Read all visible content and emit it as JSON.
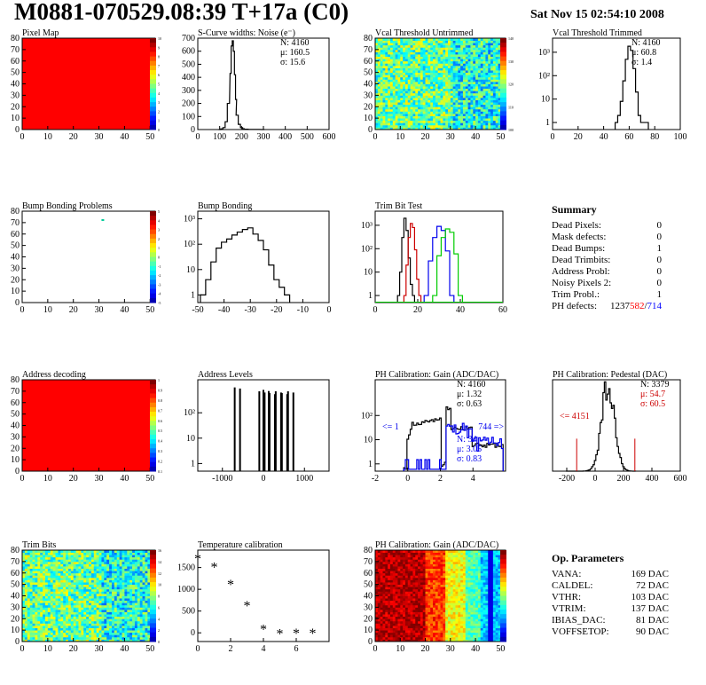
{
  "title": "M0881-070529.08:39 T+17a (C0)",
  "date": "Sat Nov 15 02:54:10 2008",
  "colors": {
    "red": "#ff0000",
    "blue": "#0000ff",
    "green": "#00cc00",
    "black": "#000000",
    "darkred": "#cc0000"
  },
  "chart_data": [
    {
      "id": "pixel-map",
      "type": "heatmap",
      "title": "Pixel Map",
      "xlim": [
        0,
        52
      ],
      "ylim": [
        0,
        80
      ],
      "x_ticks": [
        0,
        10,
        20,
        30,
        40,
        50
      ],
      "y_ticks": [
        0,
        10,
        20,
        30,
        40,
        50,
        60,
        70,
        80
      ],
      "fill": "uniform-max",
      "palette_ticks": [
        "10",
        "9",
        "8",
        "7",
        "6",
        "5",
        "4",
        "3",
        "2",
        "1",
        "0"
      ]
    },
    {
      "id": "scurve",
      "type": "histogram",
      "title": "S-Curve widths: Noise (e⁻)",
      "xlim": [
        0,
        600
      ],
      "ylim": [
        0,
        700
      ],
      "log": false,
      "x_ticks": [
        0,
        100,
        200,
        300,
        400,
        500,
        600
      ],
      "y_ticks": [
        0,
        100,
        200,
        300,
        400,
        500,
        600,
        700
      ],
      "x": [
        100,
        110,
        120,
        130,
        140,
        150,
        155,
        160,
        165,
        170,
        175,
        180,
        190,
        200,
        210,
        220,
        240,
        260,
        300
      ],
      "values": [
        0,
        5,
        15,
        60,
        200,
        430,
        640,
        680,
        600,
        420,
        230,
        110,
        40,
        15,
        6,
        3,
        1,
        1,
        0
      ],
      "stats": {
        "N": "N: 4160",
        "mu": "μ: 160.5",
        "sigma": "σ: 15.6"
      }
    },
    {
      "id": "vcal-untrimmed",
      "type": "heatmap",
      "title": "Vcal Threshold Untrimmed",
      "xlim": [
        0,
        52
      ],
      "ylim": [
        0,
        80
      ],
      "x_ticks": [
        0,
        10,
        20,
        30,
        40,
        50
      ],
      "y_ticks": [
        0,
        10,
        20,
        30,
        40,
        50,
        60,
        70,
        80
      ],
      "fill": "noisy-mid",
      "palette_ticks": [
        "140",
        "130",
        "120",
        "110",
        "100"
      ]
    },
    {
      "id": "vcal-trimmed",
      "type": "histogram",
      "title": "Vcal Threshold Trimmed",
      "xlim": [
        0,
        100
      ],
      "ylim": [
        0.5,
        4000
      ],
      "log": true,
      "x_ticks": [
        0,
        20,
        40,
        60,
        80,
        100
      ],
      "y_ticks": [
        "1",
        "10",
        "10²",
        "10³"
      ],
      "x": [
        50,
        52,
        54,
        56,
        58,
        60,
        62,
        64,
        66,
        68,
        70,
        72,
        74
      ],
      "values": [
        1,
        2,
        8,
        60,
        500,
        1800,
        1200,
        200,
        20,
        2,
        1,
        1,
        1
      ],
      "stats": {
        "N": "N: 4160",
        "mu": "μ: 60.8",
        "sigma": "σ:  1.4"
      }
    },
    {
      "id": "bump-problems",
      "type": "heatmap",
      "title": "Bump Bonding Problems",
      "xlim": [
        0,
        52
      ],
      "ylim": [
        0,
        80
      ],
      "x_ticks": [
        0,
        10,
        20,
        30,
        40,
        50
      ],
      "y_ticks": [
        0,
        10,
        20,
        30,
        40,
        50,
        60,
        70,
        80
      ],
      "fill": "single-dot",
      "palette_ticks": [
        "5",
        "4",
        "3",
        "2",
        "1",
        "0",
        "-1",
        "-2",
        "-3",
        "-4",
        "-5"
      ]
    },
    {
      "id": "bump-bonding",
      "type": "histogram",
      "title": "Bump Bonding",
      "xlim": [
        -50,
        0
      ],
      "ylim": [
        0.5,
        2000
      ],
      "log": true,
      "x_ticks": [
        -50,
        -40,
        -30,
        -20,
        -10,
        0
      ],
      "y_ticks": [
        "1",
        "10",
        "10²",
        "10³"
      ],
      "x": [
        -48,
        -46,
        -44,
        -42,
        -40,
        -38,
        -36,
        -34,
        -32,
        -30,
        -28,
        -26,
        -24,
        -22,
        -20,
        -18,
        -16
      ],
      "values": [
        1,
        4,
        20,
        70,
        120,
        160,
        230,
        300,
        380,
        440,
        250,
        140,
        60,
        15,
        4,
        2,
        1
      ]
    },
    {
      "id": "trim-bits-test",
      "type": "histogram",
      "title": "Trim Bit Test",
      "xlim": [
        0,
        60
      ],
      "ylim": [
        0.5,
        4000
      ],
      "log": true,
      "x_ticks": [
        0,
        20,
        40,
        60
      ],
      "y_ticks": [
        "1",
        "10",
        "10²",
        "10³"
      ],
      "series": [
        {
          "color": "black",
          "x": [
            11,
            12,
            13,
            14,
            15,
            16,
            17,
            18
          ],
          "values": [
            1,
            10,
            300,
            2000,
            600,
            40,
            3,
            1
          ]
        },
        {
          "color": "red",
          "x": [
            14,
            15,
            16,
            17,
            18,
            19,
            20,
            21
          ],
          "values": [
            1,
            20,
            300,
            1200,
            800,
            90,
            5,
            1
          ]
        },
        {
          "color": "blue",
          "x": [
            24,
            26,
            28,
            30,
            32,
            34,
            36
          ],
          "values": [
            1,
            30,
            300,
            900,
            600,
            80,
            1
          ]
        },
        {
          "color": "green",
          "x": [
            28,
            30,
            32,
            34,
            36,
            38,
            40
          ],
          "values": [
            1,
            50,
            300,
            700,
            500,
            60,
            1
          ]
        }
      ]
    },
    {
      "id": "address-decoding",
      "type": "heatmap",
      "title": "Address decoding",
      "xlim": [
        0,
        52
      ],
      "ylim": [
        0,
        80
      ],
      "x_ticks": [
        0,
        10,
        20,
        30,
        40,
        50
      ],
      "y_ticks": [
        0,
        10,
        20,
        30,
        40,
        50,
        60,
        70,
        80
      ],
      "fill": "uniform-max",
      "palette_ticks": [
        "1",
        "0.9",
        "0.8",
        "0.7",
        "0.6",
        "0.5",
        "0.4",
        "0.3",
        "0.2",
        "0.1"
      ]
    },
    {
      "id": "address-levels",
      "type": "histogram",
      "title": "Address Levels",
      "xlim": [
        -1600,
        1600
      ],
      "ylim": [
        0.5,
        2000
      ],
      "log": true,
      "x_ticks": [
        -1000,
        0,
        1000
      ],
      "y_ticks": [
        "1",
        "10",
        "10²"
      ],
      "x": [
        -700,
        -100,
        0,
        150,
        300,
        450,
        600
      ],
      "values": [
        1000,
        700,
        800,
        600,
        700,
        600,
        700
      ]
    },
    {
      "id": "ph-gain",
      "type": "histogram",
      "title": "PH Calibration: Gain (ADC/DAC)",
      "xlim": [
        -2,
        6
      ],
      "ylim": [
        0.5,
        3000
      ],
      "log": true,
      "x_ticks": [
        -2,
        0,
        2,
        4
      ],
      "y_ticks": [
        "1",
        "10",
        "10²"
      ],
      "stats": {
        "N": "N: 4160",
        "mu": "μ: 1.32",
        "sigma": "σ: 0.63"
      },
      "stats2": {
        "N": "N: 34",
        "mu": "μ: 3.05",
        "sigma": "σ: 0.83"
      },
      "under": "<= 1",
      "over": "744 =>"
    },
    {
      "id": "ph-pedestal",
      "type": "histogram",
      "title": "PH Calibration: Pedestal (DAC)",
      "xlim": [
        -300,
        600
      ],
      "ylim": [
        0,
        45
      ],
      "log": false,
      "x_ticks": [
        -200,
        0,
        200,
        400,
        600
      ],
      "stats": {
        "N": "N: 3379",
        "mu": "μ: 54.7",
        "sigma": "σ: 60.5"
      },
      "under": "<= 4151"
    },
    {
      "id": "trim-bits",
      "type": "heatmap",
      "title": "Trim Bits",
      "xlim": [
        0,
        52
      ],
      "ylim": [
        0,
        80
      ],
      "x_ticks": [
        0,
        10,
        20,
        30,
        40,
        50
      ],
      "y_ticks": [
        0,
        10,
        20,
        30,
        40,
        50,
        60,
        70,
        80
      ],
      "fill": "noisy-mid",
      "palette_ticks": [
        "16",
        "14",
        "12",
        "10",
        "8",
        "6",
        "4",
        "2",
        "0"
      ]
    },
    {
      "id": "temperature",
      "type": "scatter",
      "title": "Temperature calibration",
      "xlim": [
        0,
        8
      ],
      "ylim": [
        -200,
        1900
      ],
      "x_ticks": [
        0,
        2,
        4,
        6
      ],
      "y_ticks": [
        0,
        500,
        1000,
        1500
      ],
      "x": [
        0,
        1,
        2,
        3,
        4,
        5,
        6,
        7
      ],
      "values": [
        1700,
        1500,
        1100,
        620,
        80,
        -30,
        -20,
        -20
      ]
    },
    {
      "id": "ph-gain-map",
      "type": "heatmap",
      "title": "PH Calibration: Gain (ADC/DAC)",
      "xlim": [
        0,
        52
      ],
      "ylim": [
        0,
        80
      ],
      "x_ticks": [
        0,
        10,
        20,
        30,
        40,
        50
      ],
      "y_ticks": [
        0,
        10,
        20,
        30,
        40,
        50,
        60,
        70,
        80
      ],
      "fill": "gradient-x"
    }
  ],
  "summary": {
    "heading": "Summary",
    "rows": [
      {
        "label": "Dead Pixels:",
        "value": "0"
      },
      {
        "label": "Mask defects:",
        "value": "0"
      },
      {
        "label": "Dead Bumps:",
        "value": "1"
      },
      {
        "label": "Dead Trimbits:",
        "value": "0"
      },
      {
        "label": "Address Probl:",
        "value": "0"
      },
      {
        "label": "Noisy Pixels 2:",
        "value": "0"
      },
      {
        "label": "Trim Probl.:",
        "value": "1"
      }
    ],
    "ph_label": "PH defects:",
    "ph_a": "1237",
    "ph_b": "582",
    "ph_sep": "/",
    "ph_c": "714"
  },
  "op_params": {
    "heading": "Op. Parameters",
    "rows": [
      {
        "label": "VANA:",
        "value": "169 DAC"
      },
      {
        "label": "CALDEL:",
        "value": "72 DAC"
      },
      {
        "label": "VTHR:",
        "value": "103 DAC"
      },
      {
        "label": "VTRIM:",
        "value": "137 DAC"
      },
      {
        "label": "IBIAS_DAC:",
        "value": "81 DAC"
      },
      {
        "label": "VOFFSETOP:",
        "value": "90 DAC"
      }
    ]
  }
}
